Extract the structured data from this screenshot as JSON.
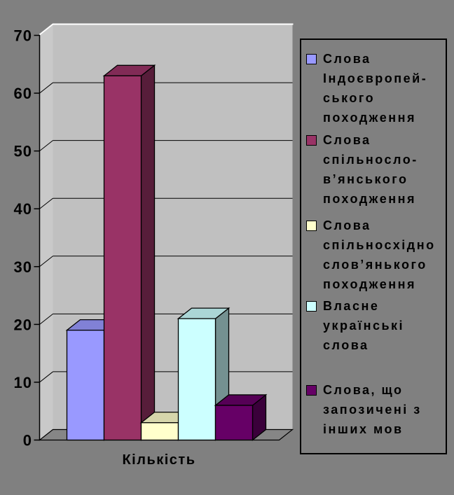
{
  "chart_data": {
    "type": "bar",
    "projection": "3d",
    "title": "",
    "categories": [
      "Кількість"
    ],
    "series": [
      {
        "label": "Слова\nІндоєвропей-\nського\nпоходження",
        "value": 19,
        "color": "#9999FF"
      },
      {
        "label": "Слова\nспільносло-\nв’янського\nпоходження",
        "value": 63,
        "color": "#993366"
      },
      {
        "label": "Слова\nспільносхідно\nслов’янького\nпоходження",
        "value": 3,
        "color": "#FFFFCC"
      },
      {
        "label": "Власне\nукраїнські\nслова",
        "value": 21,
        "color": "#CCFFFF"
      },
      {
        "label": "Слова, що\nзапозичені з\nінших мов",
        "value": 6,
        "color": "#660066"
      }
    ],
    "xlabel": "Кількість",
    "ylabel": "",
    "ylim": [
      0,
      70
    ],
    "y_ticks": [
      0,
      10,
      20,
      30,
      40,
      50,
      60,
      70
    ],
    "grid": true,
    "legend_position": "right"
  },
  "colors": {
    "background": "#808080",
    "wall": "#C0C0C0",
    "left_wall": "#C9C9C9",
    "floor": "#868686",
    "outline": "#000000",
    "highlight": "#FFFFFF"
  }
}
